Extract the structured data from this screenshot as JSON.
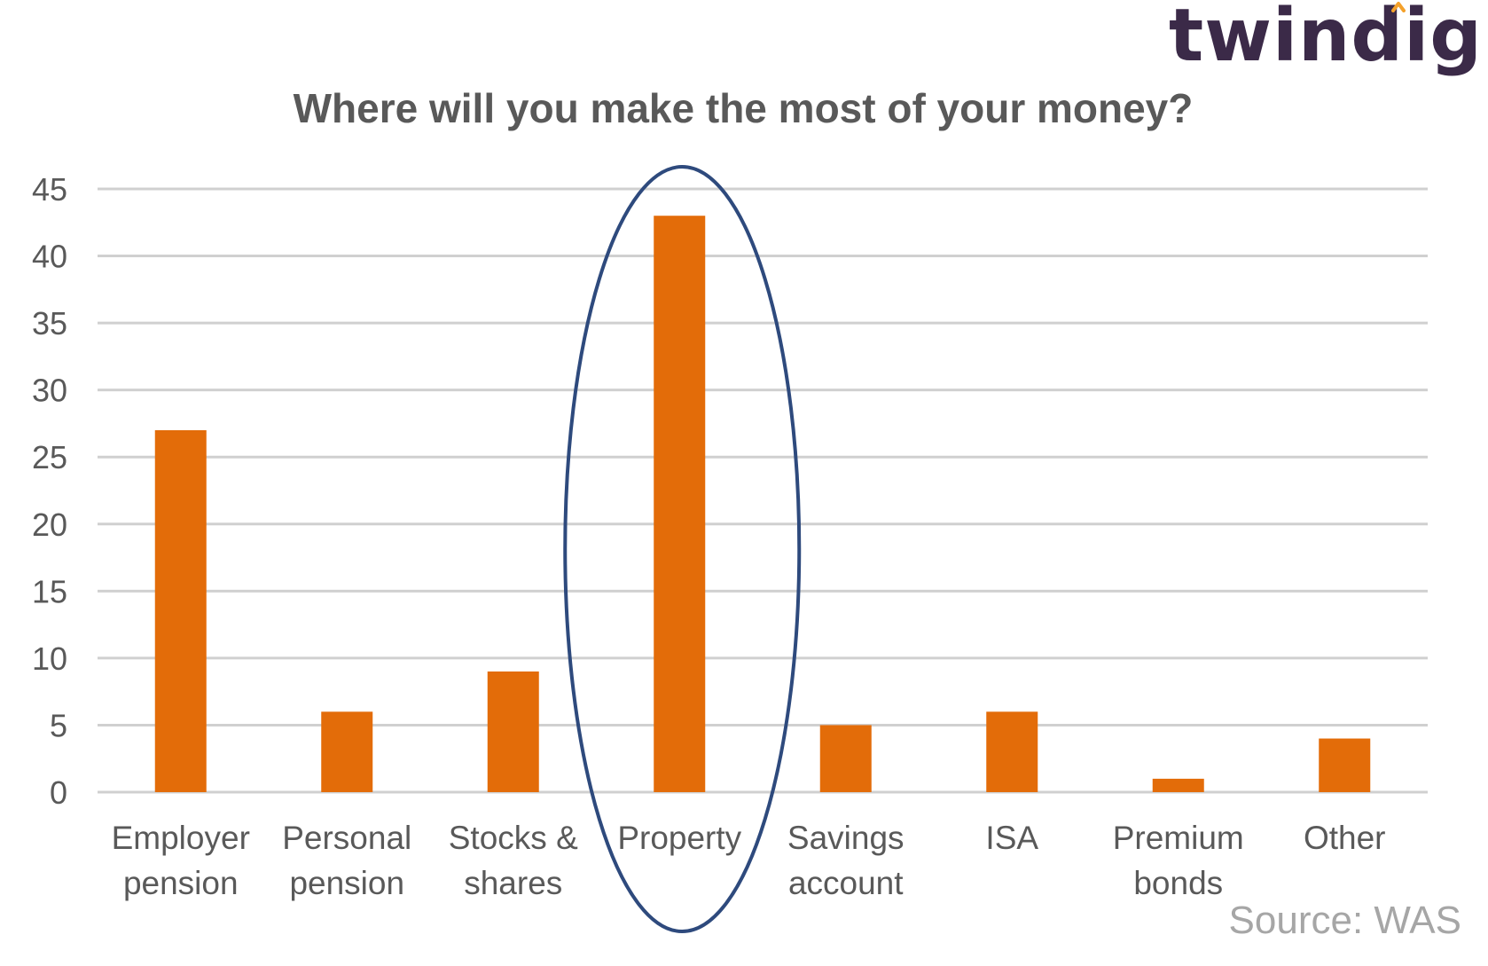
{
  "brand": {
    "name": "twindig",
    "accent_color": "#f4a12b",
    "text_color": "#3b2a48"
  },
  "source_text": "Source: WAS",
  "colors": {
    "bar": "#e36c09",
    "grid": "#d0d0d0",
    "highlight_ellipse": "#2e4a7d",
    "axis_text": "#595959",
    "title_text": "#595959"
  },
  "chart_data": {
    "type": "bar",
    "title": "Where will you make the most of your money?",
    "xlabel": "",
    "ylabel": "",
    "ylim": [
      0,
      45
    ],
    "yticks": [
      0,
      5,
      10,
      15,
      20,
      25,
      30,
      35,
      40,
      45
    ],
    "grid": true,
    "categories": [
      [
        "Employer",
        "pension"
      ],
      [
        "Personal",
        "pension"
      ],
      [
        "Stocks &",
        "shares"
      ],
      [
        "Property"
      ],
      [
        "Savings",
        "account"
      ],
      [
        "ISA"
      ],
      [
        "Premium",
        "bonds"
      ],
      [
        "Other"
      ]
    ],
    "values": [
      27,
      6,
      9,
      43,
      5,
      6,
      1,
      4
    ],
    "highlighted_category": "Property"
  }
}
